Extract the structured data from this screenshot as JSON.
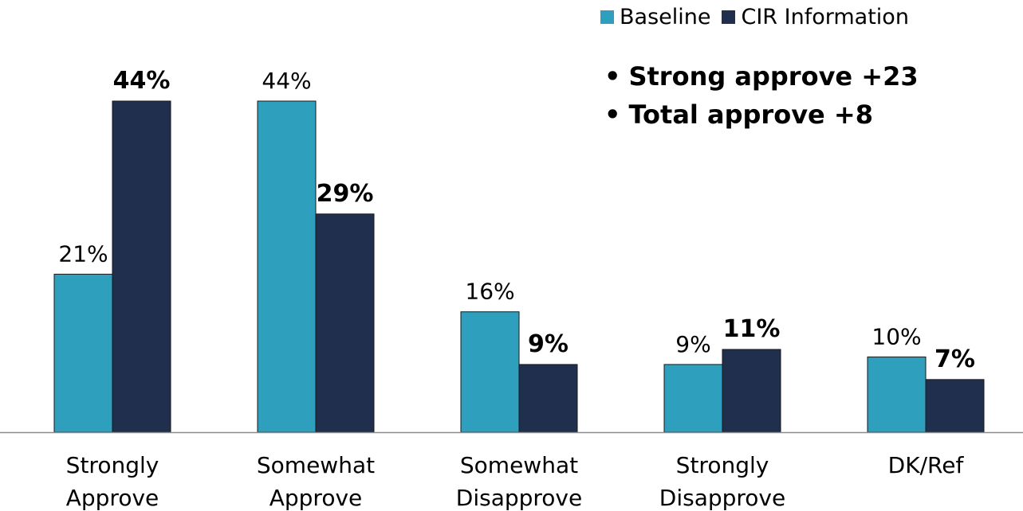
{
  "chart_data": {
    "type": "bar",
    "categories": [
      [
        "Strongly",
        "Approve"
      ],
      [
        "Somewhat",
        "Approve"
      ],
      [
        "Somewhat",
        "Disapprove"
      ],
      [
        "Strongly",
        "Disapprove"
      ],
      [
        "DK/Ref"
      ]
    ],
    "series": [
      {
        "name": "Baseline",
        "color": "#2e9fbd",
        "values": [
          21,
          44,
          16,
          9,
          10
        ],
        "labels": [
          "21%",
          "44%",
          "16%",
          "9%",
          "10%"
        ],
        "label_bold": false
      },
      {
        "name": "CIR Information",
        "color": "#1f2f4d",
        "values": [
          44,
          29,
          9,
          11,
          7
        ],
        "labels": [
          "44%",
          "29%",
          "9%",
          "11%",
          "7%"
        ],
        "label_bold": true
      }
    ],
    "ylim": [
      0,
      44
    ],
    "grid": false,
    "legend_position": "top-right",
    "annotations": [
      "Strong approve +23",
      "Total approve +8"
    ]
  },
  "annotation_bullet": "•"
}
